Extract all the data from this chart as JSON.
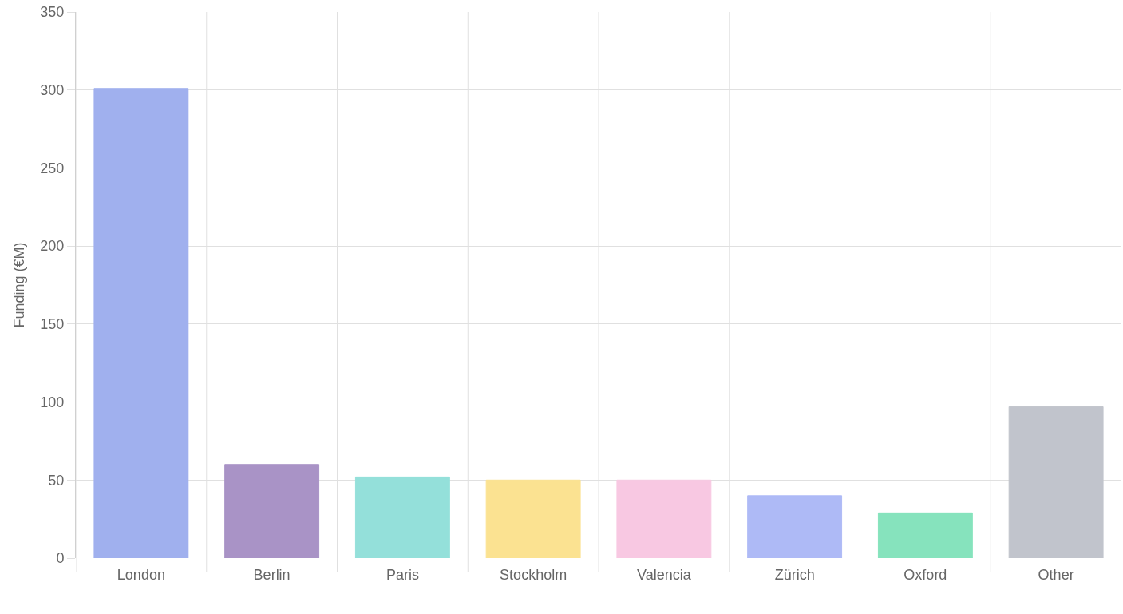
{
  "chart_data": {
    "type": "bar",
    "ylabel": "Funding (€M)",
    "categories": [
      "London",
      "Berlin",
      "Paris",
      "Stockholm",
      "Valencia",
      "Zürich",
      "Oxford",
      "Other"
    ],
    "values": [
      301,
      60,
      52,
      50,
      50,
      40,
      29,
      97
    ],
    "colors": [
      "#a0b0ee",
      "#a993c6",
      "#94e0da",
      "#fbe291",
      "#f8c8e2",
      "#aebaf6",
      "#86e3bd",
      "#c1c4cc"
    ],
    "ylim": [
      0,
      350
    ],
    "yticks": [
      0,
      50,
      100,
      150,
      200,
      250,
      300,
      350
    ],
    "grid": true
  }
}
